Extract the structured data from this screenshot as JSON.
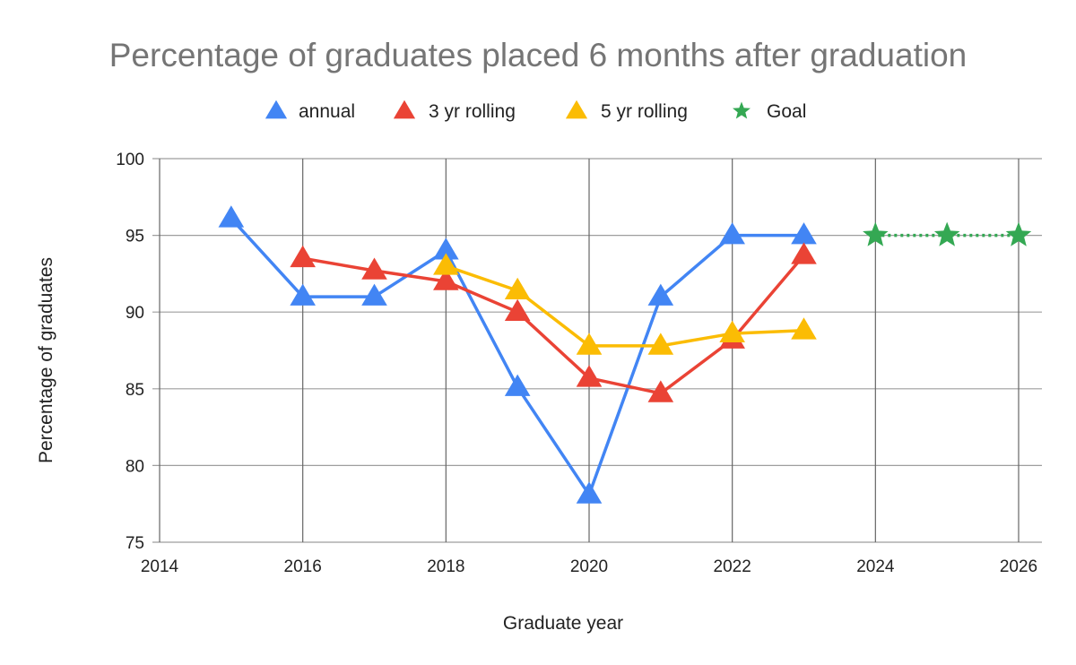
{
  "chart_data": {
    "type": "line",
    "title": "Percentage of graduates placed 6 months after graduation",
    "xlabel": "Graduate year",
    "ylabel": "Percentage of graduates",
    "xlim": [
      2014,
      2026
    ],
    "ylim": [
      75,
      100
    ],
    "x_ticks": [
      "2014",
      "2016",
      "2018",
      "2020",
      "2022",
      "2024",
      "2026"
    ],
    "y_ticks": [
      "75",
      "80",
      "85",
      "90",
      "95",
      "100"
    ],
    "grid": true,
    "legend_position": "top",
    "series": [
      {
        "name": "annual",
        "color": "#4285f4",
        "marker": "triangle",
        "line_style": "solid",
        "x": [
          2015,
          2016,
          2017,
          2018,
          2019,
          2020,
          2021,
          2022,
          2023
        ],
        "values": [
          96.1,
          91.0,
          91.0,
          94.0,
          85.1,
          78.1,
          91.0,
          95.0,
          95.0
        ]
      },
      {
        "name": "3 yr rolling",
        "color": "#ea4335",
        "marker": "triangle",
        "line_style": "solid",
        "x": [
          2016,
          2017,
          2018,
          2019,
          2020,
          2021,
          2022,
          2023
        ],
        "values": [
          93.5,
          92.7,
          92.0,
          90.0,
          85.7,
          84.7,
          88.2,
          93.7
        ]
      },
      {
        "name": "5 yr rolling",
        "color": "#fbbc04",
        "marker": "triangle",
        "line_style": "solid",
        "x": [
          2018,
          2019,
          2020,
          2021,
          2022,
          2023
        ],
        "values": [
          93.0,
          91.4,
          87.8,
          87.8,
          88.6,
          88.8
        ]
      },
      {
        "name": "Goal",
        "color": "#34a853",
        "marker": "star",
        "line_style": "dotted",
        "x": [
          2024,
          2025,
          2026
        ],
        "values": [
          95,
          95,
          95
        ]
      }
    ]
  }
}
